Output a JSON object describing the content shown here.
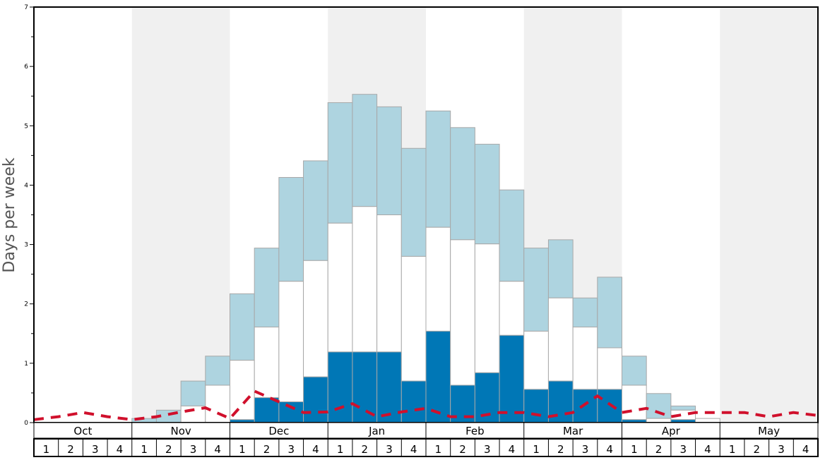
{
  "chart_data": {
    "type": "bar",
    "ylabel": "Days per week",
    "ylim": [
      0,
      7
    ],
    "y_ticks": [
      "0",
      "1",
      "2",
      "3",
      "4",
      "5",
      "6",
      "7"
    ],
    "months": [
      "Oct",
      "Nov",
      "Dec",
      "Jan",
      "Feb",
      "Mar",
      "Apr",
      "May"
    ],
    "week_labels": [
      "1",
      "2",
      "3",
      "4"
    ],
    "colors": {
      "dark_segment": "#0077b6",
      "white_segment": "#ffffff",
      "light_segment": "#aed4e0",
      "dashed_line": "#d0102c",
      "alt_band": "#f0f0f0",
      "bar_edge": "#a8a8a8"
    },
    "series": [
      {
        "style": "stacked-bars",
        "bottom_dark": [
          0,
          0,
          0,
          0,
          0,
          0,
          0,
          0,
          0.05,
          0.42,
          0.35,
          0.77,
          1.19,
          1.19,
          1.19,
          0.7,
          1.54,
          0.63,
          0.84,
          1.47,
          0.56,
          0.7,
          0.56,
          0.56,
          0.05,
          0,
          0.05,
          0,
          0,
          0,
          0,
          0
        ],
        "middle_total": [
          0,
          0,
          0,
          0,
          0,
          0,
          0.28,
          0.63,
          1.05,
          1.61,
          2.38,
          2.73,
          3.36,
          3.64,
          3.5,
          2.8,
          3.29,
          3.08,
          3.01,
          2.38,
          1.54,
          2.1,
          1.61,
          1.26,
          0.63,
          0.07,
          0.21,
          0.07,
          0,
          0,
          0,
          0
        ],
        "top_total": [
          0,
          0,
          0,
          0,
          0.07,
          0.21,
          0.7,
          1.12,
          2.17,
          2.94,
          4.13,
          4.41,
          5.39,
          5.53,
          5.32,
          4.62,
          5.25,
          4.97,
          4.69,
          3.92,
          2.94,
          3.08,
          2.1,
          2.45,
          1.12,
          0.49,
          0.28,
          0.07,
          0,
          0,
          0,
          0
        ]
      },
      {
        "style": "dashed-line",
        "values": [
          0.05,
          0.1,
          0.17,
          0.1,
          0.05,
          0.1,
          0.18,
          0.25,
          0.07,
          0.53,
          0.35,
          0.17,
          0.18,
          0.32,
          0.1,
          0.18,
          0.24,
          0.1,
          0.1,
          0.17,
          0.17,
          0.1,
          0.17,
          0.45,
          0.17,
          0.24,
          0.1,
          0.17,
          0.17,
          0.17,
          0.1,
          0.17,
          0.12
        ]
      }
    ]
  }
}
